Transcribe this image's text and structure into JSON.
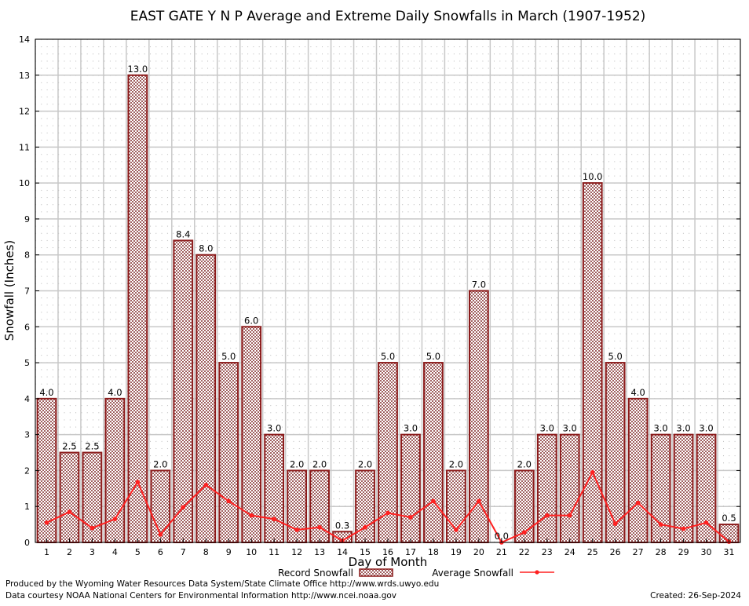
{
  "chart_data": {
    "type": "bar",
    "title": "EAST GATE Y N P Average and Extreme Daily Snowfalls in March (1907-1952)",
    "xlabel": "Day of Month",
    "ylabel": "Snowfall (Inches)",
    "ylim": [
      0,
      14
    ],
    "yticks": [
      "0",
      "1",
      "2",
      "3",
      "4",
      "5",
      "6",
      "7",
      "8",
      "9",
      "10",
      "11",
      "12",
      "13",
      "14"
    ],
    "categories": [
      "1",
      "2",
      "3",
      "4",
      "5",
      "6",
      "7",
      "8",
      "9",
      "10",
      "11",
      "12",
      "13",
      "14",
      "15",
      "16",
      "17",
      "18",
      "19",
      "20",
      "21",
      "22",
      "23",
      "24",
      "25",
      "26",
      "27",
      "28",
      "29",
      "30",
      "31"
    ],
    "series": [
      {
        "name": "Record Snowfall",
        "type": "bar",
        "values": [
          4.0,
          2.5,
          2.5,
          4.0,
          13.0,
          2.0,
          8.4,
          8.0,
          5.0,
          6.0,
          3.0,
          2.0,
          2.0,
          0.3,
          2.0,
          5.0,
          3.0,
          5.0,
          2.0,
          7.0,
          0.0,
          2.0,
          3.0,
          3.0,
          10.0,
          5.0,
          4.0,
          3.0,
          3.0,
          3.0,
          0.5
        ],
        "labels": [
          "4.0",
          "2.5",
          "2.5",
          "4.0",
          "13.0",
          "2.0",
          "8.4",
          "8.0",
          "5.0",
          "6.0",
          "3.0",
          "2.0",
          "2.0",
          "0.3",
          "2.0",
          "5.0",
          "3.0",
          "5.0",
          "2.0",
          "7.0",
          "0.0",
          "2.0",
          "3.0",
          "3.0",
          "10.0",
          "5.0",
          "4.0",
          "3.0",
          "3.0",
          "3.0",
          "0.5"
        ],
        "color": "#8b1a1a"
      },
      {
        "name": "Average Snowfall",
        "type": "line",
        "values": [
          0.55,
          0.85,
          0.4,
          0.65,
          1.68,
          0.22,
          0.98,
          1.6,
          1.15,
          0.75,
          0.65,
          0.35,
          0.42,
          0.05,
          0.42,
          0.82,
          0.7,
          1.15,
          0.35,
          1.15,
          0.0,
          0.28,
          0.75,
          0.75,
          1.95,
          0.52,
          1.1,
          0.5,
          0.38,
          0.55,
          0.02
        ],
        "color": "#ff2020"
      }
    ],
    "grid": true,
    "legend": "bottom-center"
  },
  "footer": {
    "produced_by": "Produced by the Wyoming Water Resources Data System/State Climate Office http://www.wrds.uwyo.edu",
    "data_courtesy": "Data courtesy NOAA National Centers for Environmental Information http://www.ncei.noaa.gov",
    "created": "Created:  26-Sep-2024"
  }
}
